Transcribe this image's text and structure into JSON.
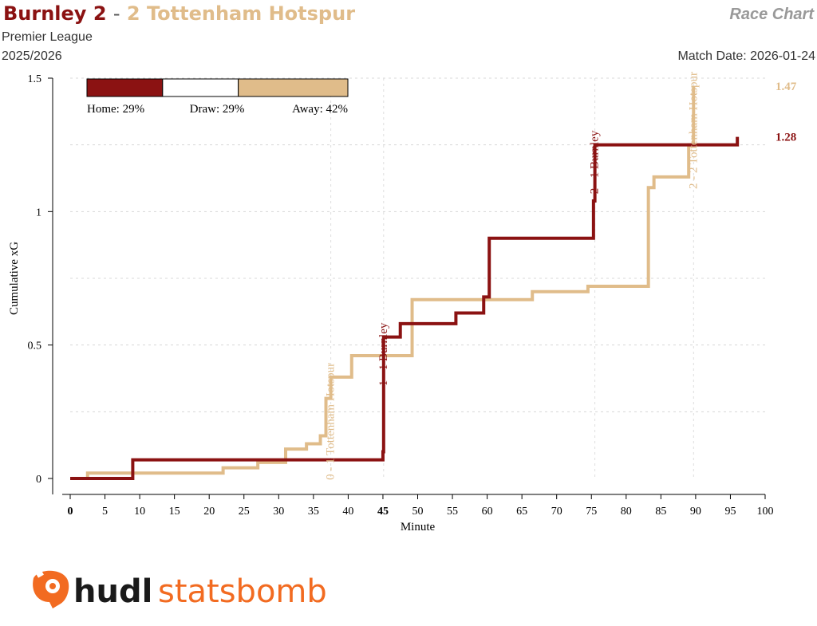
{
  "header": {
    "home_team": "Burnley",
    "home_score": "2",
    "separator": "-",
    "away_score": "2",
    "away_team": "Tottenham Hotspur",
    "competition": "Premier League",
    "season": "2025/2026",
    "chart_label": "Race Chart",
    "match_date": "Match Date: 2026-01-24"
  },
  "colors": {
    "home": "#8b1212",
    "away": "#e0bc8a",
    "draw_bar": "#ffffff",
    "logo": "#f26b21",
    "logo_text": "#1a1a1a"
  },
  "logo": {
    "icon": "statsbomb-logo-icon",
    "text_part1": "hudl",
    "text_part2": "statsbomb"
  },
  "chart_data": {
    "type": "line",
    "step": true,
    "xlabel": "Minute",
    "ylabel": "Cumulative xG",
    "xlim": [
      0,
      100
    ],
    "ylim": [
      0,
      1.5
    ],
    "x_ticks": [
      "0",
      "5",
      "10",
      "15",
      "20",
      "25",
      "30",
      "35",
      "40",
      "45",
      "50",
      "55",
      "60",
      "65",
      "70",
      "75",
      "80",
      "85",
      "90",
      "95",
      "100"
    ],
    "bold_x_ticks": [
      "0",
      "45"
    ],
    "y_ticks": [
      "0",
      "0.5",
      "1",
      "1.5"
    ],
    "y_grid": [
      0.25,
      0.5,
      0.75,
      1.0,
      1.25,
      1.5
    ],
    "series": [
      {
        "team": "Burnley",
        "side": "home",
        "final_label": "1.28",
        "points": [
          [
            0,
            0
          ],
          [
            3,
            0
          ],
          [
            9,
            0.07
          ],
          [
            45,
            0.1
          ],
          [
            45.1,
            0.53
          ],
          [
            47.5,
            0.58
          ],
          [
            55.5,
            0.62
          ],
          [
            59.5,
            0.68
          ],
          [
            60.3,
            0.9
          ],
          [
            75.3,
            1.04
          ],
          [
            75.5,
            1.25
          ],
          [
            96,
            1.28
          ]
        ]
      },
      {
        "team": "Tottenham Hotspur",
        "side": "away",
        "final_label": "1.47",
        "points": [
          [
            0,
            0
          ],
          [
            2.5,
            0.02
          ],
          [
            22,
            0.04
          ],
          [
            27,
            0.06
          ],
          [
            31,
            0.11
          ],
          [
            34,
            0.13
          ],
          [
            36,
            0.16
          ],
          [
            36.8,
            0.3
          ],
          [
            37.5,
            0.38
          ],
          [
            40.5,
            0.46
          ],
          [
            49.2,
            0.67
          ],
          [
            66.5,
            0.7
          ],
          [
            74.5,
            0.72
          ],
          [
            83.2,
            1.09
          ],
          [
            84,
            1.13
          ],
          [
            89,
            1.25
          ],
          [
            89.7,
            1.47
          ]
        ]
      }
    ],
    "annotations": [
      {
        "text": "0 - 1 Tottenham Hotspur",
        "minute": 37.5,
        "side": "away"
      },
      {
        "text": "1 - 1 Burnley",
        "minute": 45.1,
        "side": "home"
      },
      {
        "text": "2 - 1 Burnley",
        "minute": 75.5,
        "side": "home"
      },
      {
        "text": "2 - 2 Tottenham Hotspur",
        "minute": 89.7,
        "side": "away"
      }
    ],
    "legend": {
      "placement": "top-left",
      "home_label": "Home: 29%",
      "draw_label": "Draw: 29%",
      "away_label": "Away: 42%",
      "home_pct": 0.29,
      "draw_pct": 0.29,
      "away_pct": 0.42
    }
  }
}
